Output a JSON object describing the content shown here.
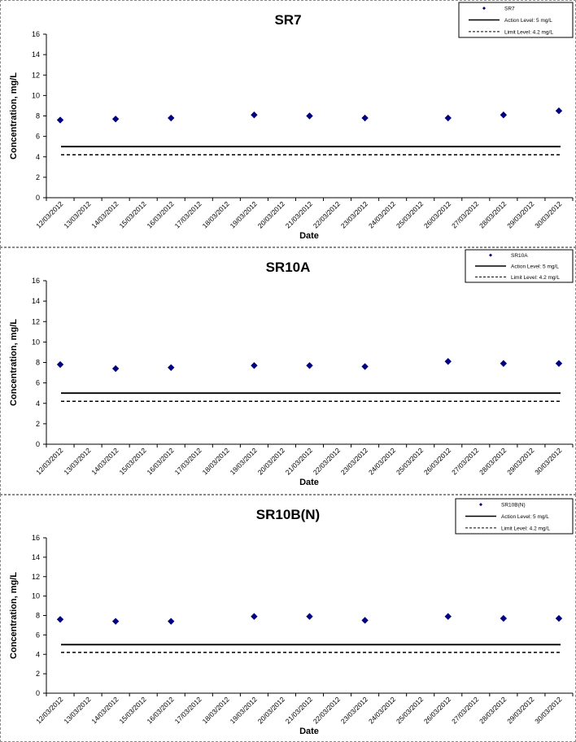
{
  "chart_data": [
    {
      "type": "scatter",
      "title": "SR7",
      "xlabel": "Date",
      "ylabel": "Concentration, mg/L",
      "ylim": [
        0,
        16
      ],
      "yticks": [
        0,
        2,
        4,
        6,
        8,
        10,
        12,
        14,
        16
      ],
      "categories": [
        "12/03/2012",
        "13/03/2012",
        "14/03/2012",
        "15/03/2012",
        "16/03/2012",
        "17/03/2012",
        "18/03/2012",
        "19/03/2012",
        "20/03/2012",
        "21/03/2012",
        "22/03/2012",
        "23/03/2012",
        "24/03/2012",
        "25/03/2012",
        "26/03/2012",
        "27/03/2012",
        "28/03/2012",
        "29/03/2012",
        "30/03/2012"
      ],
      "series": [
        {
          "name": "SR7",
          "points": [
            {
              "x": "12/03/2012",
              "y": 7.6
            },
            {
              "x": "14/03/2012",
              "y": 7.7
            },
            {
              "x": "16/03/2012",
              "y": 7.8
            },
            {
              "x": "19/03/2012",
              "y": 8.1
            },
            {
              "x": "21/03/2012",
              "y": 8.0
            },
            {
              "x": "23/03/2012",
              "y": 7.8
            },
            {
              "x": "26/03/2012",
              "y": 7.8
            },
            {
              "x": "28/03/2012",
              "y": 8.1
            },
            {
              "x": "30/03/2012",
              "y": 8.5
            }
          ]
        }
      ],
      "reference_lines": [
        {
          "name": "Action Level: 5 mg/L",
          "value": 5,
          "style": "solid"
        },
        {
          "name": "Limit Level: 4.2 mg/L",
          "value": 4.2,
          "style": "dashed"
        }
      ],
      "legend": "top-right",
      "grid": false,
      "marker_color": "#000080"
    },
    {
      "type": "scatter",
      "title": "SR10A",
      "xlabel": "Date",
      "ylabel": "Concentration, mg/L",
      "ylim": [
        0,
        16
      ],
      "yticks": [
        0,
        2,
        4,
        6,
        8,
        10,
        12,
        14,
        16
      ],
      "categories": [
        "12/03/2012",
        "13/03/2012",
        "14/03/2012",
        "15/03/2012",
        "16/03/2012",
        "17/03/2012",
        "18/03/2012",
        "19/03/2012",
        "20/03/2012",
        "21/03/2012",
        "22/03/2012",
        "23/03/2012",
        "24/03/2012",
        "25/03/2012",
        "26/03/2012",
        "27/03/2012",
        "28/03/2012",
        "29/03/2012",
        "30/03/2012"
      ],
      "series": [
        {
          "name": "SR10A",
          "points": [
            {
              "x": "12/03/2012",
              "y": 7.8
            },
            {
              "x": "14/03/2012",
              "y": 7.4
            },
            {
              "x": "16/03/2012",
              "y": 7.5
            },
            {
              "x": "19/03/2012",
              "y": 7.7
            },
            {
              "x": "21/03/2012",
              "y": 7.7
            },
            {
              "x": "23/03/2012",
              "y": 7.6
            },
            {
              "x": "26/03/2012",
              "y": 8.1
            },
            {
              "x": "28/03/2012",
              "y": 7.9
            },
            {
              "x": "30/03/2012",
              "y": 7.9
            }
          ]
        }
      ],
      "reference_lines": [
        {
          "name": "Action Level: 5 mg/L",
          "value": 5,
          "style": "solid"
        },
        {
          "name": "Limit Level: 4.2 mg/L",
          "value": 4.2,
          "style": "dashed"
        }
      ],
      "legend": "top-right",
      "grid": false,
      "marker_color": "#000080"
    },
    {
      "type": "scatter",
      "title": "SR10B(N)",
      "xlabel": "Date",
      "ylabel": "Concentration, mg/L",
      "ylim": [
        0,
        16
      ],
      "yticks": [
        0,
        2,
        4,
        6,
        8,
        10,
        12,
        14,
        16
      ],
      "categories": [
        "12/03/2012",
        "13/03/2012",
        "14/03/2012",
        "15/03/2012",
        "16/03/2012",
        "17/03/2012",
        "18/03/2012",
        "19/03/2012",
        "20/03/2012",
        "21/03/2012",
        "22/03/2012",
        "23/03/2012",
        "24/03/2012",
        "25/03/2012",
        "26/03/2012",
        "27/03/2012",
        "28/03/2012",
        "29/03/2012",
        "30/03/2012"
      ],
      "series": [
        {
          "name": "SR10B(N)",
          "points": [
            {
              "x": "12/03/2012",
              "y": 7.6
            },
            {
              "x": "14/03/2012",
              "y": 7.4
            },
            {
              "x": "16/03/2012",
              "y": 7.4
            },
            {
              "x": "19/03/2012",
              "y": 7.9
            },
            {
              "x": "21/03/2012",
              "y": 7.9
            },
            {
              "x": "23/03/2012",
              "y": 7.5
            },
            {
              "x": "26/03/2012",
              "y": 7.9
            },
            {
              "x": "28/03/2012",
              "y": 7.7
            },
            {
              "x": "30/03/2012",
              "y": 7.7
            }
          ]
        }
      ],
      "reference_lines": [
        {
          "name": "Action Level: 5 mg/L",
          "value": 5,
          "style": "solid"
        },
        {
          "name": "Limit Level: 4.2 mg/L",
          "value": 4.2,
          "style": "dashed"
        }
      ],
      "legend": "top-right",
      "grid": false,
      "marker_color": "#000080"
    }
  ]
}
